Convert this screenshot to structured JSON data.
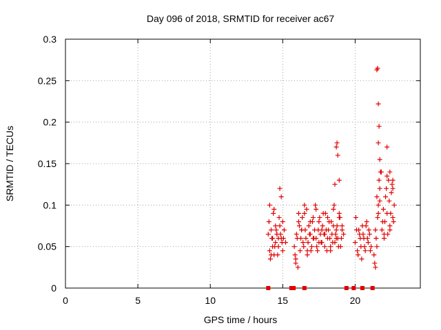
{
  "chart_data": {
    "type": "scatter",
    "title": "Day 096 of 2018, SRMTID for receiver ac67",
    "xlabel": "GPS time / hours",
    "ylabel": "SRMTID / TECUs",
    "xlim": [
      0,
      24.5
    ],
    "ylim": [
      0,
      0.3
    ],
    "xticks": [
      0,
      5,
      10,
      15,
      20
    ],
    "xtick_labels": [
      "0",
      "5",
      "10",
      "15",
      "20"
    ],
    "yticks": [
      0,
      0.05,
      0.1,
      0.15,
      0.2,
      0.25,
      0.3
    ],
    "ytick_labels": [
      "0",
      "0.05",
      "0.1",
      "0.15",
      "0.2",
      "0.25",
      "0.3"
    ],
    "grid": true,
    "marker": "+",
    "color": "#e00000",
    "series": [
      {
        "name": "SRMTID",
        "x": [
          14.0,
          14.1,
          14.2,
          14.3,
          14.4,
          14.5,
          14.6,
          14.7,
          14.8,
          14.9,
          15.0,
          15.1,
          15.2,
          14.05,
          14.15,
          14.25,
          14.35,
          14.45,
          14.55,
          14.65,
          14.75,
          14.85,
          14.95,
          15.05,
          14.1,
          14.3,
          14.5,
          14.7,
          14.9,
          14.2,
          14.4,
          14.6,
          14.8,
          15.0,
          15.8,
          15.9,
          16.0,
          16.1,
          16.2,
          16.3,
          16.4,
          16.5,
          16.6,
          16.7,
          16.8,
          16.9,
          17.0,
          17.1,
          17.2,
          17.3,
          17.4,
          17.5,
          17.6,
          17.7,
          17.8,
          17.9,
          18.0,
          18.1,
          18.2,
          18.3,
          18.4,
          18.5,
          18.6,
          18.7,
          18.8,
          18.9,
          19.0,
          19.1,
          19.2,
          15.85,
          15.95,
          16.05,
          16.15,
          16.25,
          16.35,
          16.45,
          16.55,
          16.65,
          16.75,
          16.85,
          16.95,
          17.05,
          17.15,
          17.25,
          17.35,
          17.45,
          17.55,
          17.65,
          17.75,
          17.85,
          17.95,
          18.05,
          18.15,
          18.25,
          18.35,
          18.45,
          18.55,
          18.65,
          18.75,
          18.85,
          18.95,
          19.05,
          15.9,
          16.1,
          16.3,
          16.5,
          16.7,
          16.9,
          17.1,
          17.3,
          17.5,
          17.7,
          17.9,
          18.1,
          18.3,
          18.5,
          18.7,
          18.9,
          19.1,
          18.7,
          18.75,
          18.8,
          18.6,
          18.9,
          20.0,
          20.1,
          20.2,
          20.3,
          20.4,
          20.5,
          20.6,
          20.7,
          20.8,
          20.9,
          21.0,
          21.1,
          20.05,
          20.15,
          20.25,
          20.35,
          20.45,
          20.55,
          20.65,
          20.75,
          20.85,
          20.95,
          21.05,
          21.3,
          21.4,
          21.5,
          21.6,
          21.7,
          21.8,
          21.9,
          22.0,
          22.1,
          22.2,
          22.3,
          22.4,
          22.5,
          22.6,
          22.7,
          21.35,
          21.45,
          21.55,
          21.65,
          21.75,
          21.85,
          21.95,
          22.05,
          22.15,
          22.25,
          22.35,
          22.45,
          22.55,
          22.65,
          21.4,
          21.5,
          21.6,
          21.7,
          21.8,
          22.0,
          22.2,
          22.4,
          22.6,
          21.5,
          21.55,
          21.6,
          21.65,
          21.6,
          21.7,
          22.2,
          22.4,
          22.6
        ],
        "y": [
          0.065,
          0.045,
          0.07,
          0.06,
          0.04,
          0.055,
          0.065,
          0.05,
          0.075,
          0.06,
          0.045,
          0.07,
          0.055,
          0.08,
          0.035,
          0.06,
          0.09,
          0.05,
          0.07,
          0.04,
          0.085,
          0.065,
          0.055,
          0.06,
          0.1,
          0.05,
          0.075,
          0.06,
          0.11,
          0.04,
          0.095,
          0.065,
          0.12,
          0.08,
          0.05,
          0.03,
          0.06,
          0.08,
          0.045,
          0.07,
          0.055,
          0.09,
          0.06,
          0.04,
          0.075,
          0.065,
          0.05,
          0.085,
          0.07,
          0.06,
          0.045,
          0.08,
          0.065,
          0.055,
          0.09,
          0.05,
          0.07,
          0.06,
          0.08,
          0.045,
          0.065,
          0.095,
          0.055,
          0.07,
          0.06,
          0.085,
          0.05,
          0.075,
          0.065,
          0.04,
          0.065,
          0.025,
          0.075,
          0.06,
          0.085,
          0.05,
          0.07,
          0.095,
          0.055,
          0.065,
          0.045,
          0.08,
          0.06,
          0.1,
          0.05,
          0.07,
          0.085,
          0.055,
          0.075,
          0.065,
          0.09,
          0.045,
          0.07,
          0.06,
          0.08,
          0.055,
          0.1,
          0.065,
          0.075,
          0.05,
          0.085,
          0.06,
          0.035,
          0.09,
          0.07,
          0.1,
          0.045,
          0.08,
          0.06,
          0.095,
          0.055,
          0.07,
          0.065,
          0.085,
          0.05,
          0.075,
          0.06,
          0.09,
          0.07,
          0.17,
          0.175,
          0.16,
          0.125,
          0.13,
          0.055,
          0.07,
          0.04,
          0.065,
          0.05,
          0.075,
          0.06,
          0.045,
          0.08,
          0.055,
          0.065,
          0.05,
          0.085,
          0.045,
          0.07,
          0.06,
          0.035,
          0.065,
          0.05,
          0.075,
          0.06,
          0.07,
          0.045,
          0.04,
          0.07,
          0.05,
          0.1,
          0.12,
          0.14,
          0.08,
          0.065,
          0.11,
          0.09,
          0.13,
          0.07,
          0.115,
          0.085,
          0.1,
          0.03,
          0.06,
          0.085,
          0.13,
          0.14,
          0.07,
          0.095,
          0.08,
          0.12,
          0.065,
          0.105,
          0.09,
          0.125,
          0.08,
          0.025,
          0.11,
          0.09,
          0.105,
          0.14,
          0.06,
          0.135,
          0.075,
          0.12,
          0.263,
          0.265,
          0.222,
          0.195,
          0.175,
          0.155,
          0.17,
          0.14,
          0.13
        ]
      }
    ],
    "gap_markers_x": [
      14.0,
      15.6,
      15.75,
      16.5,
      19.4,
      19.9,
      20.5,
      21.2
    ]
  }
}
